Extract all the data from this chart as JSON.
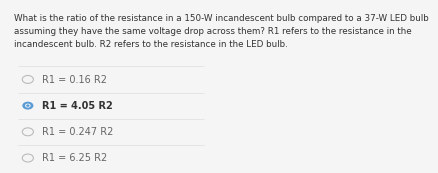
{
  "question": "What is the ratio of the resistance in a 150-W incandescent bulb compared to a 37-W LED bulb\nassuming they have the same voltage drop across them? R1 refers to the resistance in the\nincandescent bulb. R2 refers to the resistance in the LED bulb.",
  "options": [
    {
      "label": "R1 = 0.16 R2",
      "selected": false
    },
    {
      "label": "R1 = 4.05 R2",
      "selected": true
    },
    {
      "label": "R1 = 0.247 R2",
      "selected": false
    },
    {
      "label": "R1 = 6.25 R2",
      "selected": false
    }
  ],
  "bg_color": "#f5f5f5",
  "text_color": "#666666",
  "question_color": "#333333",
  "selected_color": "#5b9bd5",
  "unselected_color": "#bbbbbb",
  "divider_color": "#dddddd",
  "question_fontsize": 6.3,
  "option_fontsize": 7.0
}
